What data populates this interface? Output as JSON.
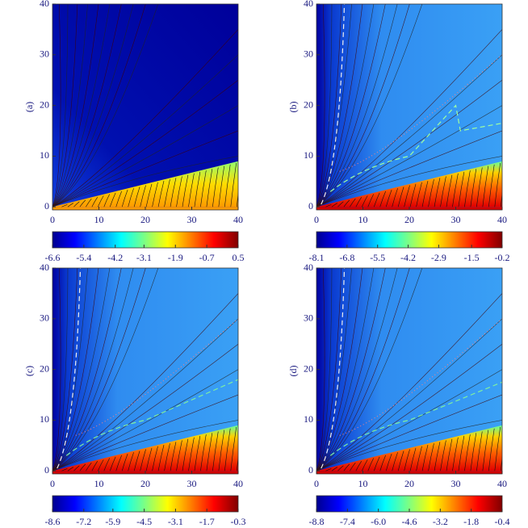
{
  "chart_data": [
    {
      "type": "heatmap",
      "label": "(a)",
      "xlim": [
        0,
        40
      ],
      "xticks": [
        0,
        10,
        20,
        30,
        40
      ],
      "ylim": [
        -0.6,
        40
      ],
      "yticks": [
        0,
        10,
        20,
        30,
        40
      ],
      "clim": [
        -6.6,
        0.5
      ],
      "cticks": [
        -6.6,
        -5.4,
        -4.2,
        -3.1,
        -1.9,
        -0.7,
        0.5
      ]
    },
    {
      "type": "heatmap",
      "label": "(b)",
      "xlim": [
        0,
        40
      ],
      "xticks": [
        0,
        10,
        20,
        30,
        40
      ],
      "ylim": [
        -0.6,
        40
      ],
      "yticks": [
        0,
        10,
        20,
        30,
        40
      ],
      "clim": [
        -8.1,
        -0.2
      ],
      "cticks": [
        -8.1,
        -6.8,
        -5.5,
        -4.2,
        -2.9,
        -1.5,
        -0.2
      ]
    },
    {
      "type": "heatmap",
      "label": "(c)",
      "xlim": [
        0,
        40
      ],
      "xticks": [
        0,
        10,
        20,
        30,
        40
      ],
      "ylim": [
        -0.6,
        40
      ],
      "yticks": [
        0,
        10,
        20,
        30,
        40
      ],
      "clim": [
        -8.6,
        -0.3
      ],
      "cticks": [
        -8.6,
        -7.2,
        -5.9,
        -4.5,
        -3.1,
        -1.7,
        -0.3
      ]
    },
    {
      "type": "heatmap",
      "label": "(d)",
      "xlim": [
        0,
        40
      ],
      "xticks": [
        0,
        10,
        20,
        30,
        40
      ],
      "ylim": [
        -0.6,
        40
      ],
      "yticks": [
        0,
        10,
        20,
        30,
        40
      ],
      "clim": [
        -8.8,
        -0.4
      ],
      "cticks": [
        -8.8,
        -7.4,
        {
          "value": -6,
          "label": "-6.0"
        },
        -4.6,
        -3.2,
        -1.8,
        -0.4
      ]
    }
  ]
}
